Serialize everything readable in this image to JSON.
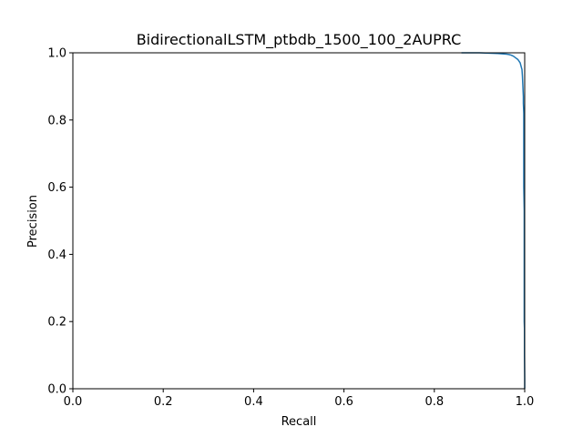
{
  "chart_data": {
    "type": "line",
    "title": "BidirectionalLSTM_ptbdb_1500_100_2AUPRC",
    "xlabel": "Recall",
    "ylabel": "Precision",
    "xlim": [
      0.0,
      1.0
    ],
    "ylim": [
      0.0,
      1.0
    ],
    "xticks": [
      "0.0",
      "0.2",
      "0.4",
      "0.6",
      "0.8",
      "1.0"
    ],
    "yticks": [
      "0.0",
      "0.2",
      "0.4",
      "0.6",
      "0.8",
      "1.0"
    ],
    "grid": false,
    "color": "#1f77b4",
    "series": [
      {
        "x": [
          0.86,
          0.88,
          0.9,
          0.92,
          0.94,
          0.95,
          0.96,
          0.965,
          0.97,
          0.975,
          0.98,
          0.985,
          0.99,
          0.992,
          0.994,
          0.995,
          0.996,
          0.997,
          0.997,
          0.998,
          0.998,
          0.998,
          0.998,
          0.998,
          0.999,
          0.999,
          0.999,
          0.999,
          0.999,
          0.9995,
          0.9995,
          0.9995,
          0.9995,
          1.0,
          1.0
        ],
        "y": [
          1.0,
          1.0,
          1.0,
          0.999,
          0.998,
          0.997,
          0.996,
          0.995,
          0.993,
          0.99,
          0.985,
          0.98,
          0.97,
          0.96,
          0.95,
          0.93,
          0.9,
          0.87,
          0.85,
          0.82,
          0.78,
          0.75,
          0.7,
          0.6,
          0.53,
          0.45,
          0.43,
          0.3,
          0.2,
          0.18,
          0.16,
          0.14,
          0.1,
          0.03,
          0.0
        ]
      }
    ]
  }
}
